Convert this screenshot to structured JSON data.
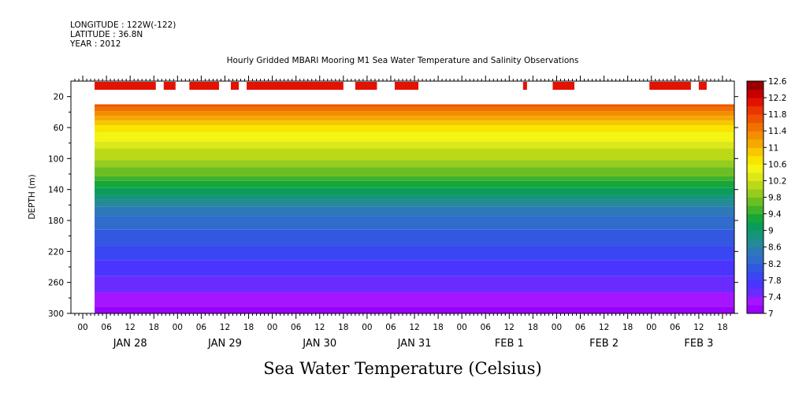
{
  "header": {
    "longitude": "LONGITUDE : 122W(-122)",
    "latitude": "LATITUDE : 36.8N",
    "year": "YEAR : 2012"
  },
  "chart_data": {
    "type": "heatmap",
    "title": "Hourly Gridded MBARI Mooring M1 Sea Water Temperature and Salinity Observations",
    "xlabel": "Sea Water Temperature (Celsius)",
    "ylabel": "DEPTH (m)",
    "y_inverted": true,
    "ylim": [
      0,
      300
    ],
    "y_ticks": [
      20,
      60,
      100,
      140,
      180,
      220,
      260,
      300
    ],
    "x_hour_ticks": [
      "00",
      "06",
      "12",
      "18",
      "00",
      "06",
      "12",
      "18",
      "00",
      "06",
      "12",
      "18",
      "00",
      "06",
      "12",
      "18",
      "00",
      "06",
      "12",
      "18",
      "00",
      "06",
      "12",
      "18",
      "00",
      "06",
      "12",
      "18"
    ],
    "x_day_labels": [
      "JAN 28",
      "JAN 29",
      "JAN 30",
      "JAN 31",
      "FEB 1",
      "FEB 2",
      "FEB 3"
    ],
    "x_range_hours": [
      -3,
      165
    ],
    "data_start_hours": 3,
    "colorbar": {
      "levels": [
        7,
        7.2,
        7.4,
        7.6,
        7.8,
        8,
        8.2,
        8.4,
        8.6,
        8.8,
        9,
        9.2,
        9.4,
        9.6,
        9.8,
        10,
        10.2,
        10.4,
        10.6,
        10.8,
        11,
        11.2,
        11.4,
        11.6,
        11.8,
        12,
        12.2,
        12.4,
        12.6
      ],
      "labels": [
        "12.6",
        "12.2",
        "11.8",
        "11.4",
        "11",
        "10.6",
        "10.2",
        "9.8",
        "9.4",
        "9",
        "8.6",
        "8.2",
        "7.8",
        "7.4",
        "7"
      ],
      "colors": [
        "#9a00ff",
        "#a515ff",
        "#6a2bff",
        "#4c34ff",
        "#3a46f2",
        "#3357e0",
        "#2f6ccc",
        "#2c78b8",
        "#238a96",
        "#16957a",
        "#0a9c5a",
        "#16a63a",
        "#40b22c",
        "#6cbf22",
        "#96cc1c",
        "#bcd916",
        "#dde81a",
        "#f4f510",
        "#f8e400",
        "#f7c700",
        "#f5a800",
        "#f38e00",
        "#f07000",
        "#ee5200",
        "#ec3400",
        "#e31200",
        "#c40000",
        "#9a0000"
      ]
    },
    "surface_segments_hours": [
      [
        3,
        18.5
      ],
      [
        20.5,
        23.5
      ],
      [
        27,
        34.5
      ],
      [
        37.5,
        39.5
      ],
      [
        41.5,
        66
      ],
      [
        69,
        74.5
      ],
      [
        79,
        85
      ],
      [
        111.5,
        112.5
      ],
      [
        119,
        124.5
      ],
      [
        143.5,
        154
      ],
      [
        156,
        158
      ]
    ],
    "surface_depth_m": 5,
    "surface_temp": 12.1,
    "profile_top_m": 30,
    "profile_bottom_m": 300,
    "profile": [
      {
        "d": 30,
        "t": 11.6
      },
      {
        "d": 45,
        "t": 11.1
      },
      {
        "d": 60,
        "t": 10.7
      },
      {
        "d": 80,
        "t": 10.3
      },
      {
        "d": 100,
        "t": 10.0
      },
      {
        "d": 120,
        "t": 9.6
      },
      {
        "d": 140,
        "t": 9.1
      },
      {
        "d": 160,
        "t": 8.6
      },
      {
        "d": 180,
        "t": 8.3
      },
      {
        "d": 200,
        "t": 8.1
      },
      {
        "d": 220,
        "t": 7.9
      },
      {
        "d": 240,
        "t": 7.7
      },
      {
        "d": 260,
        "t": 7.5
      },
      {
        "d": 280,
        "t": 7.3
      },
      {
        "d": 300,
        "t": 7.1
      }
    ]
  }
}
